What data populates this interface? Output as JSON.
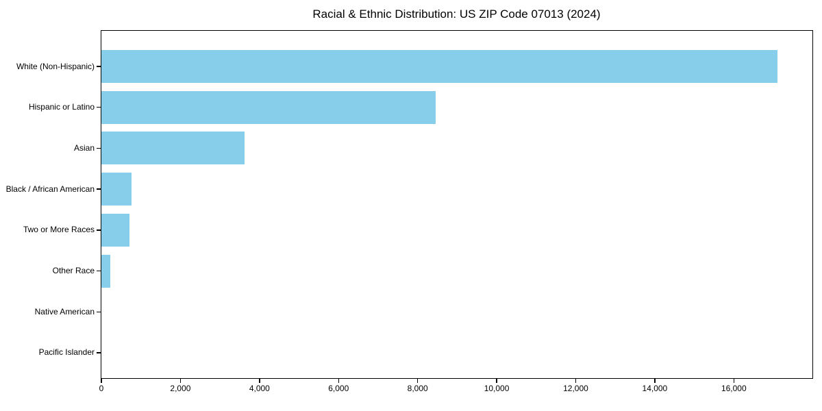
{
  "chart_data": {
    "type": "bar",
    "orientation": "horizontal",
    "title": "Racial & Ethnic Distribution: US ZIP Code 07013 (2024)",
    "categories": [
      "White (Non-Hispanic)",
      "Hispanic or Latino",
      "Asian",
      "Black / African American",
      "Two or More Races",
      "Other Race",
      "Native American",
      "Pacific Islander"
    ],
    "values": [
      17100,
      8460,
      3620,
      760,
      710,
      230,
      0,
      0
    ],
    "bar_color": "#87CEEB",
    "xlabel": "",
    "ylabel": "",
    "xlim": [
      0,
      17970
    ],
    "x_ticks": [
      0,
      2000,
      4000,
      6000,
      8000,
      10000,
      12000,
      14000,
      16000
    ],
    "x_tick_labels": [
      "0",
      "2,000",
      "4,000",
      "6,000",
      "8,000",
      "10,000",
      "12,000",
      "14,000",
      "16,000"
    ],
    "grid": false,
    "legend": null,
    "background_color": "#ffffff",
    "axis_color": "#000000"
  }
}
